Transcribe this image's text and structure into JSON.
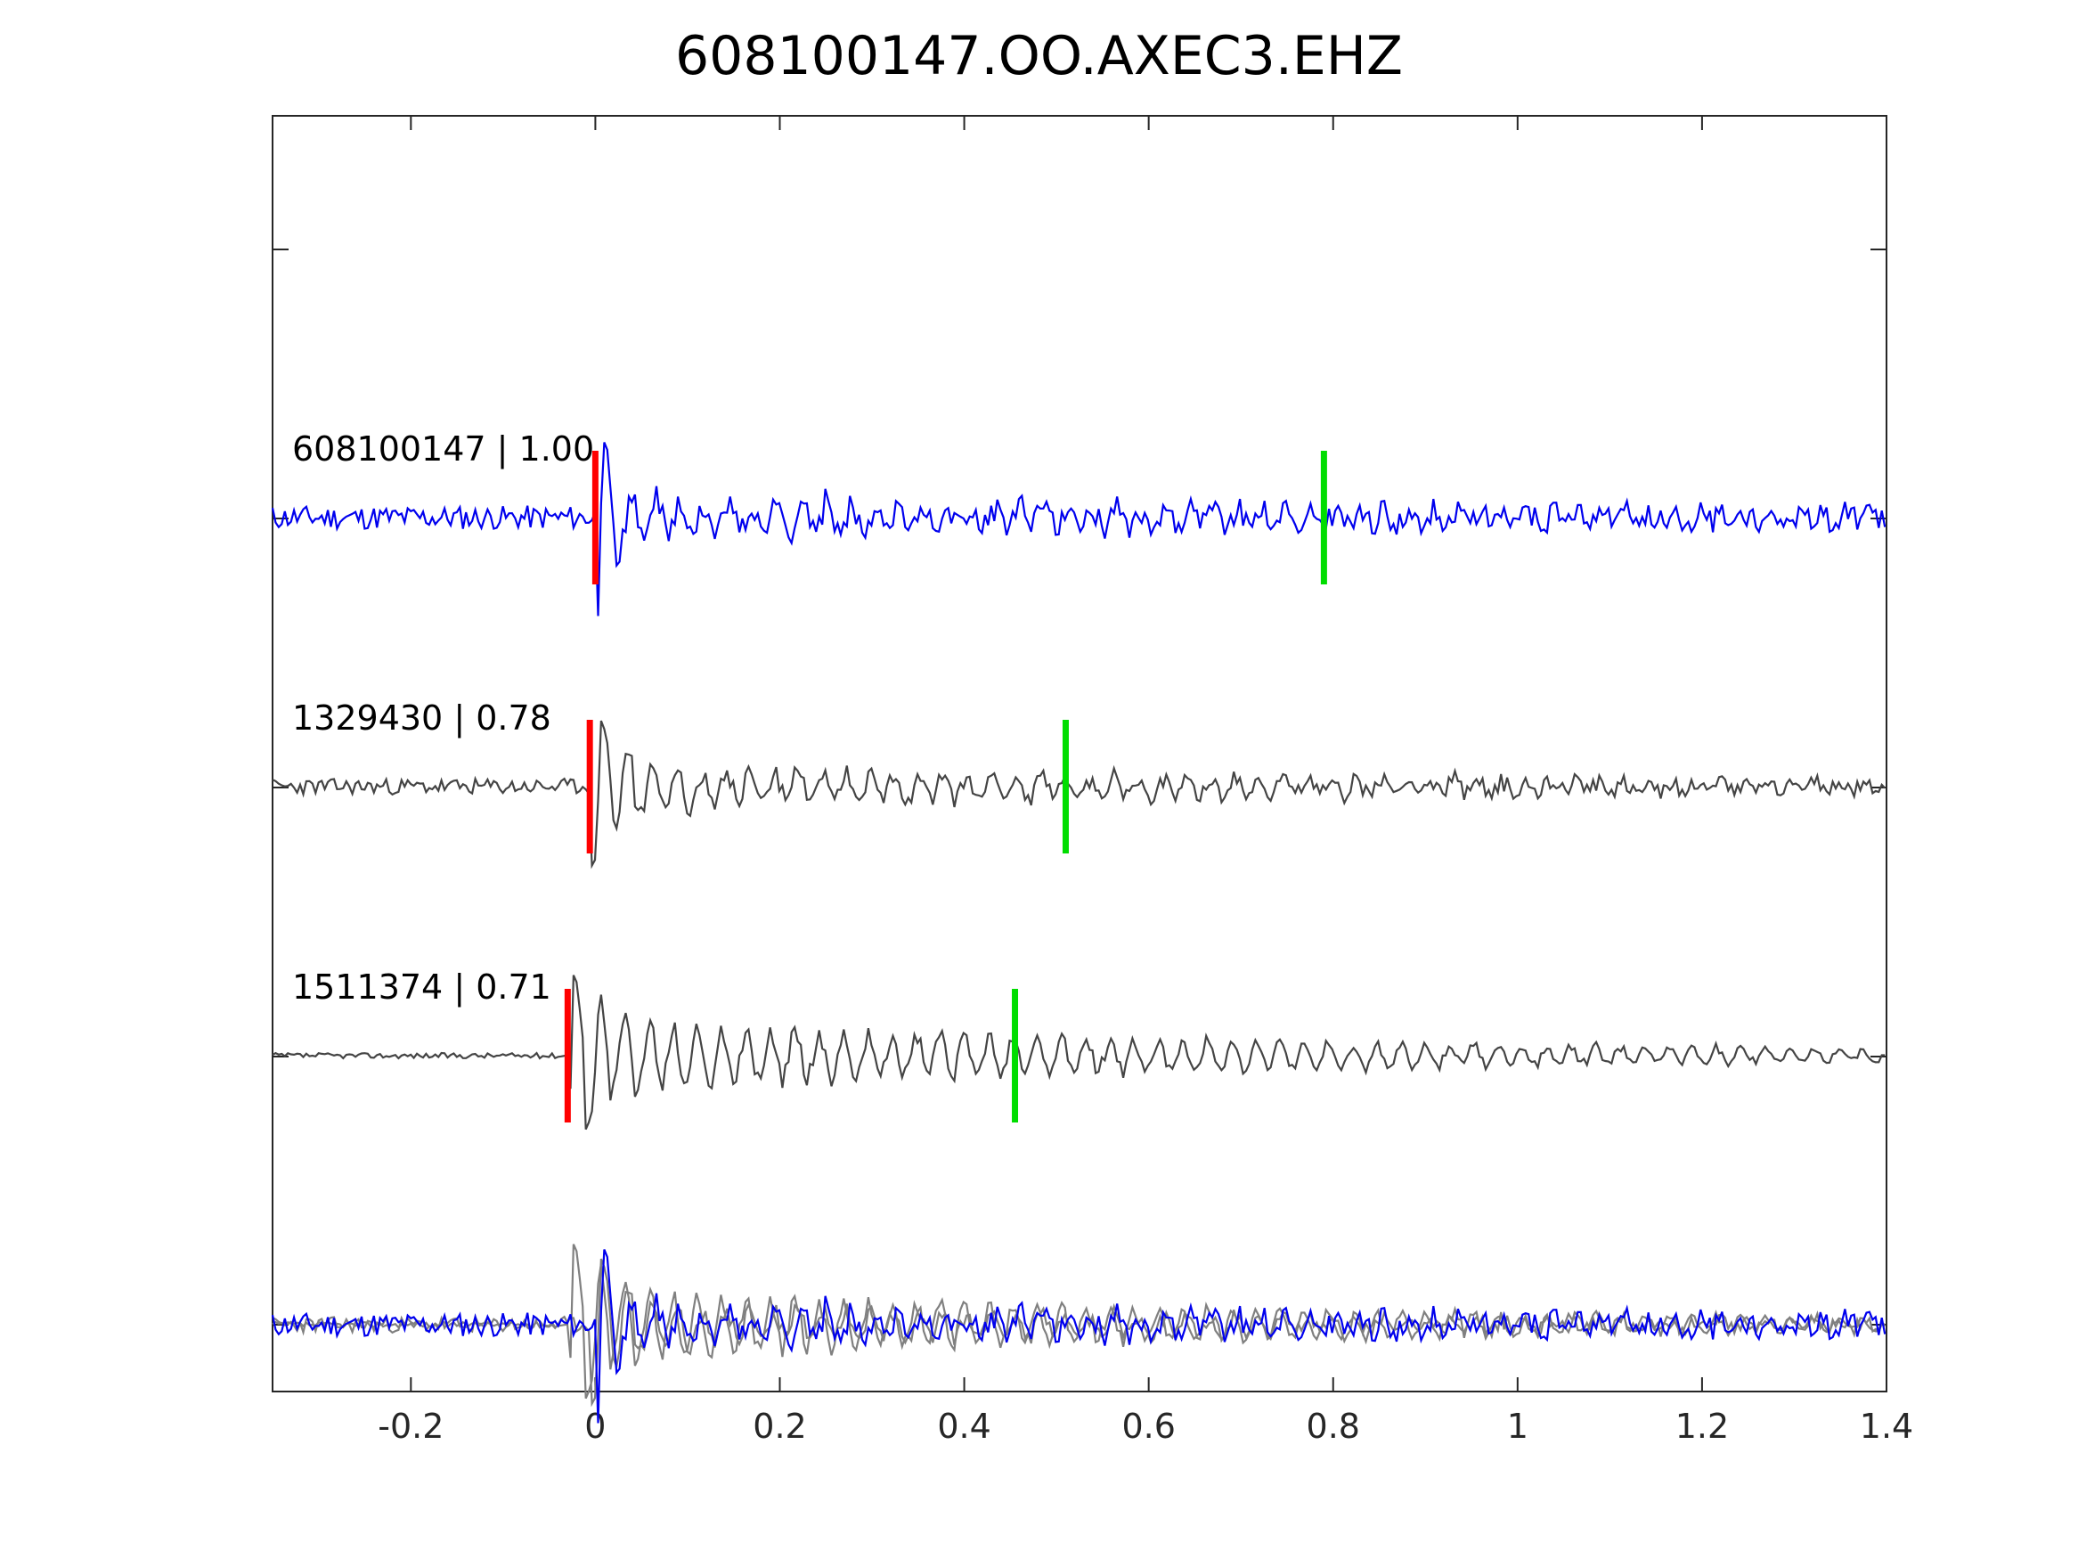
{
  "chart_data": {
    "type": "line",
    "title": "608100147.OO.AXEC3.EHZ",
    "xlabel": "",
    "ylabel": "",
    "xlim": [
      -0.35,
      1.4
    ],
    "x_ticks": [
      "-0.2",
      "0",
      "0.2",
      "0.4",
      "0.6",
      "0.8",
      "1",
      "1.2",
      "1.4"
    ],
    "x_tick_values": [
      -0.2,
      0,
      0.2,
      0.4,
      0.6,
      0.8,
      1.0,
      1.2,
      1.4
    ],
    "grid": false,
    "trace_offsets": [
      3,
      2,
      1,
      0
    ],
    "traces": [
      {
        "label": "608100147 | 1.00",
        "color": "#0000ee",
        "offset": 3,
        "p_pick": 0.0,
        "s_pick": 0.79,
        "onset": 0.0,
        "seed": 11,
        "noise": 0.09,
        "burst": 0.55,
        "coda": 0.12
      },
      {
        "label": "1329430 | 0.78",
        "color": "#444444",
        "offset": 2,
        "p_pick": -0.006,
        "s_pick": 0.51,
        "onset": -0.006,
        "seed": 23,
        "noise": 0.06,
        "burst": 0.6,
        "coda": 0.13
      },
      {
        "label": "1511374 | 0.71",
        "color": "#444444",
        "offset": 1,
        "p_pick": -0.03,
        "s_pick": 0.455,
        "onset": -0.03,
        "seed": 37,
        "noise": 0.02,
        "burst": 0.55,
        "coda": 0.22
      }
    ],
    "overlay": {
      "offset": 0,
      "main_color": "#0000ee",
      "other_color": "#808080"
    },
    "p_pick_color": "#ff0000",
    "s_pick_color": "#00dd00"
  }
}
